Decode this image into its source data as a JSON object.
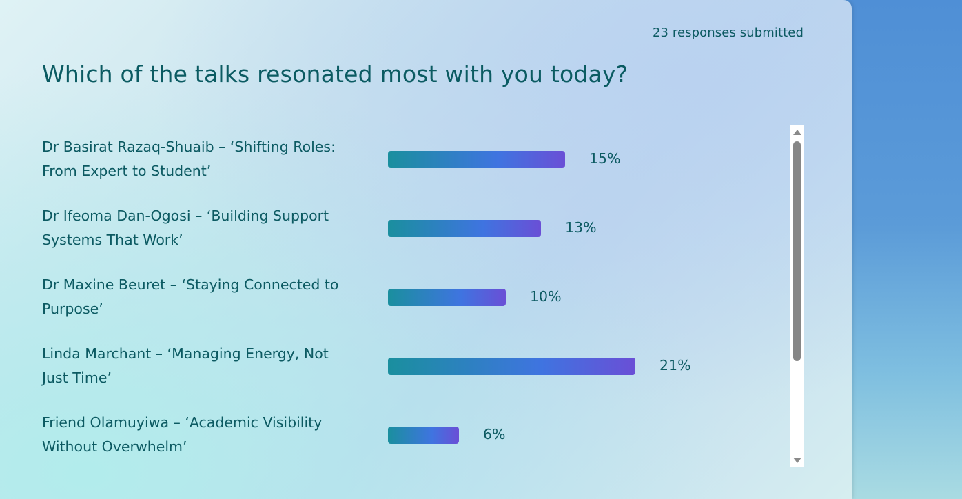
{
  "poll": {
    "response_count": "23 responses submitted",
    "question": "Which of the talks resonated most with you today?",
    "options": [
      {
        "label_line1": "Dr Basirat Razaq-Shuaib – ‘Shifting Roles:",
        "label_line2": "From Expert to Student’",
        "percent": 15,
        "percent_label": "15%"
      },
      {
        "label_line1": "Dr Ifeoma Dan-Ogosi – ‘Building Support",
        "label_line2": "Systems That Work’",
        "percent": 13,
        "percent_label": "13%"
      },
      {
        "label_line1": "Dr Maxine Beuret – ‘Staying Connected to",
        "label_line2": "Purpose’",
        "percent": 10,
        "percent_label": "10%"
      },
      {
        "label_line1": "Linda Marchant – ‘Managing Energy, Not",
        "label_line2": "Just Time’",
        "percent": 21,
        "percent_label": "21%"
      },
      {
        "label_line1": "Friend Olamuyiwa – ‘Academic Visibility",
        "label_line2": "Without Overwhelm’",
        "percent": 6,
        "percent_label": "6%"
      }
    ]
  },
  "colors": {
    "text": "#0c5a62",
    "bar_start": "#1a8f9e",
    "bar_mid": "#3f74e0",
    "bar_end": "#6a4fd6",
    "scrollbar_thumb": "#868686"
  },
  "icons": {
    "scroll_up": "triangle-up",
    "scroll_down": "triangle-down"
  }
}
